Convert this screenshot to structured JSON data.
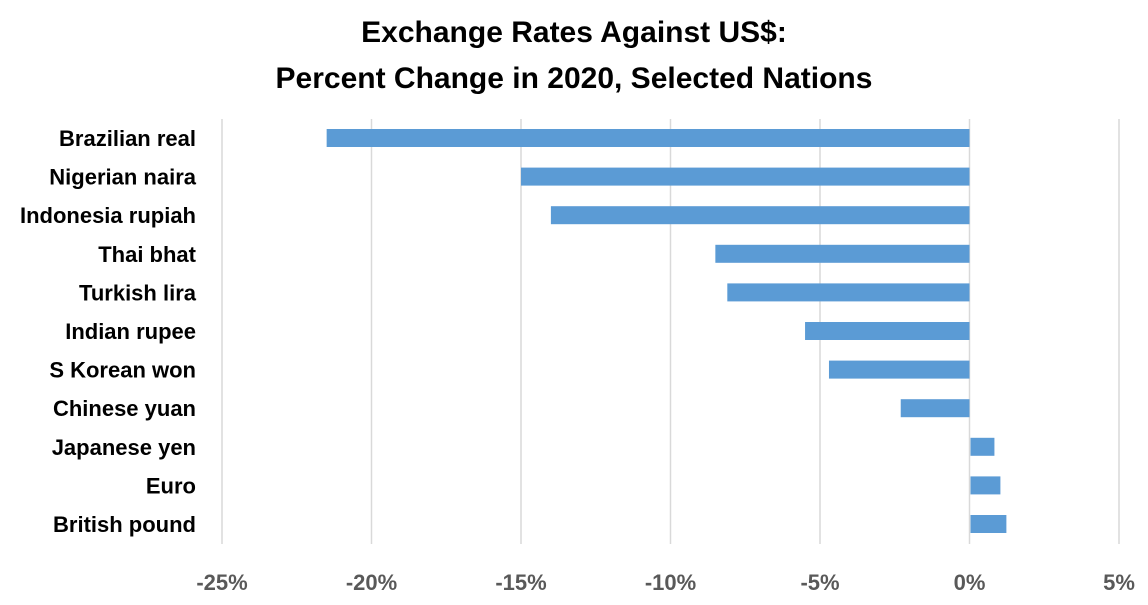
{
  "title_lines": [
    "Exchange Rates Against US$:",
    "Percent Change in 2020, Selected Nations"
  ],
  "colors": {
    "bar": "#5B9BD5",
    "grid": "#D9D9D9",
    "tick_text": "#595959",
    "label_text": "#000000"
  },
  "chart_data": {
    "type": "bar",
    "orientation": "horizontal",
    "title": "Exchange Rates Against US$: Percent Change in 2020, Selected Nations",
    "xlabel": "",
    "ylabel": "",
    "categories": [
      "Brazilian real",
      "Nigerian naira",
      "Indonesia rupiah",
      "Thai bhat",
      "Turkish lira",
      "Indian rupee",
      "S Korean won",
      "Chinese yuan",
      "Japanese yen",
      "Euro",
      "British pound"
    ],
    "values": [
      -21.5,
      -15.0,
      -14.0,
      -8.5,
      -8.1,
      -5.5,
      -4.7,
      -2.3,
      0.8,
      1.0,
      1.2
    ],
    "xlim": [
      -25,
      5
    ],
    "xticks": [
      -25,
      -20,
      -15,
      -10,
      -5,
      0,
      5
    ],
    "xtick_labels": [
      "-25%",
      "-20%",
      "-15%",
      "-10%",
      "-5%",
      "0%",
      "5%"
    ],
    "grid": "vertical",
    "legend": "none"
  }
}
